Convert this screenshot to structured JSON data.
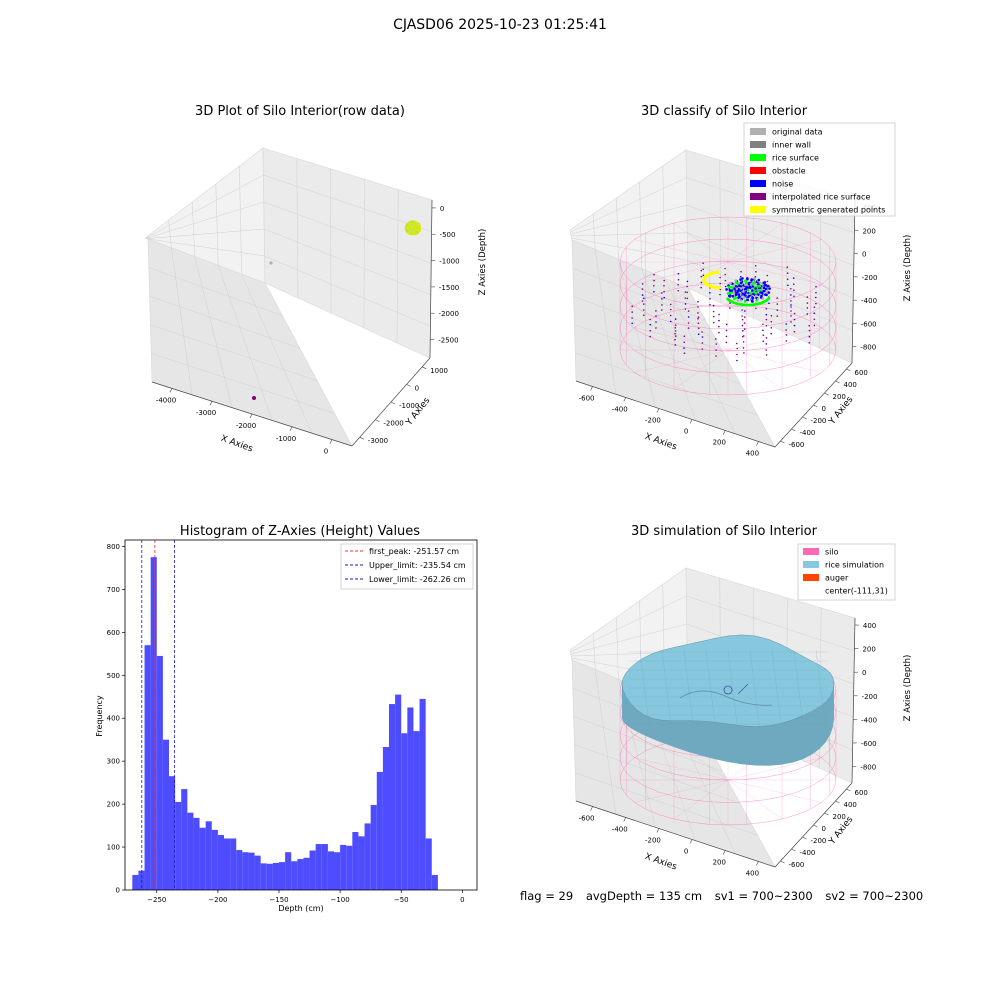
{
  "figure_title": "CJASD06 2025-10-23 01:25:41",
  "footer": {
    "flag": "flag = 29",
    "avg_depth": "avgDepth = 135 cm",
    "sv1": "sv1 = 700~2300",
    "sv2": "sv2 = 700~2300"
  },
  "colors": {
    "histogram_bar": "#4d4dff",
    "first_peak_line": "#e83030",
    "limit_lines": "#1a1acc",
    "silo_mesh": "#ff69b4",
    "rice_simulation": "#87c8df",
    "auger": "#ff4500",
    "original_data": "#b0b0b0",
    "inner_wall": "#808080",
    "rice_surface": "#00ff00",
    "obstacle": "#ff0000",
    "noise": "#0000ff",
    "interpolated_rice_surface": "#800080",
    "symmetric_generated_points": "#ffff00"
  },
  "chart_data": [
    {
      "type": "scatter",
      "title": "3D Plot of Silo Interior(row data)",
      "xlabel": "X Axies",
      "ylabel": "Y Axies",
      "zlabel": "Z Axies (Depth)",
      "x_ticks": [
        "-4000",
        "-3000",
        "-2000",
        "-1000",
        "0"
      ],
      "y_ticks": [
        "1000",
        "0",
        "-1000",
        "-2000",
        "-3000"
      ],
      "z_ticks": [
        "0",
        "-500",
        "-1000",
        "-1500",
        "-2000",
        "-2500"
      ],
      "xlim": [
        -4300,
        300
      ],
      "ylim": [
        -3300,
        1300
      ],
      "zlim": [
        -2600,
        100
      ],
      "clusters": [
        {
          "label": "main cloud",
          "x": 0,
          "y": 0,
          "z": -300,
          "color": "#d9e81a"
        },
        {
          "label": "outlier",
          "x": -4100,
          "y": -600,
          "z": -1000,
          "color": "#b0b0b0"
        },
        {
          "label": "outlier",
          "x": -2100,
          "y": -3000,
          "z": -1300,
          "color": "#800080"
        }
      ]
    },
    {
      "type": "scatter",
      "title": "3D classify of Silo Interior",
      "xlabel": "X Axies",
      "ylabel": "Y Axies",
      "zlabel": "Z Axies (Depth)",
      "x_ticks": [
        "-600",
        "-400",
        "-200",
        "0",
        "200",
        "400"
      ],
      "y_ticks": [
        "600",
        "400",
        "200",
        "0",
        "-200",
        "-400",
        "-600"
      ],
      "z_ticks": [
        "400",
        "200",
        "0",
        "-200",
        "-400",
        "-600",
        "-800"
      ],
      "legend": [
        "original data",
        "inner wall",
        "rice surface",
        "obstacle",
        "noise",
        "interpolated rice surface",
        "symmetric generated points"
      ],
      "legend_position": "top-right"
    },
    {
      "type": "bar",
      "title": "Histogram of Z-Axies (Height) Values",
      "xlabel": "Depth (cm)",
      "ylabel": "Frequency",
      "x_ticks": [
        -250,
        -200,
        -150,
        -100,
        -50,
        0
      ],
      "y_ticks": [
        0,
        100,
        200,
        300,
        400,
        500,
        600,
        700,
        800
      ],
      "xlim": [
        -276,
        12
      ],
      "ylim": [
        0,
        815
      ],
      "bin_start": -270,
      "bin_width": 5,
      "values": [
        35,
        45,
        570,
        775,
        545,
        350,
        265,
        205,
        235,
        180,
        168,
        145,
        160,
        140,
        128,
        120,
        120,
        93,
        88,
        87,
        80,
        62,
        61,
        63,
        65,
        88,
        67,
        72,
        75,
        92,
        107,
        107,
        90,
        88,
        105,
        103,
        135,
        125,
        155,
        198,
        275,
        333,
        433,
        455,
        365,
        425,
        370,
        445,
        120,
        35
      ],
      "vlines": [
        {
          "label": "first_peak: -251.57 cm",
          "x": -251.57,
          "color": "#e83030"
        },
        {
          "label": "Upper_limit: -235.54 cm",
          "x": -235.54,
          "color": "#1a1acc"
        },
        {
          "label": "Lower_limit: -262.26 cm",
          "x": -262.26,
          "color": "#1a1acc"
        }
      ],
      "legend_position": "top-right"
    },
    {
      "type": "scatter",
      "title": "3D simulation of Silo Interior",
      "xlabel": "X Axies",
      "ylabel": "Y Axies",
      "zlabel": "Z Axies (Depth)",
      "x_ticks": [
        "-600",
        "-400",
        "-200",
        "0",
        "200",
        "400"
      ],
      "y_ticks": [
        "600",
        "400",
        "200",
        "0",
        "-200",
        "-400",
        "-600"
      ],
      "z_ticks": [
        "400",
        "200",
        "0",
        "-200",
        "-400",
        "-600",
        "-800"
      ],
      "legend": [
        "silo",
        "rice simulation",
        "auger",
        "center(-111,31)"
      ],
      "legend_position": "top-right"
    }
  ]
}
